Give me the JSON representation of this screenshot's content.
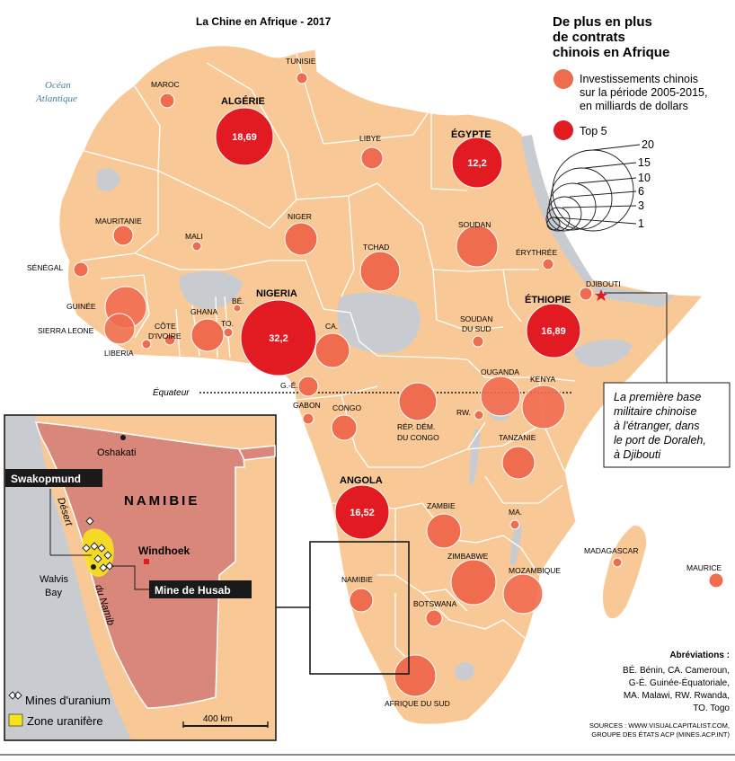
{
  "map": {
    "title": "La Chine en Afrique - 2017",
    "ocean_label": [
      "Océan",
      "Atlantique"
    ],
    "equator_label": "Équateur"
  },
  "colors": {
    "land": "#f8c997",
    "land_border": "#ffffff",
    "water": "#c8ccd0",
    "bubble": "#ef6c4f",
    "bubble_top5": "#e21b23",
    "inset_land": "#d9877a",
    "uranium_zone": "#f6e31b"
  },
  "legend": {
    "heading": [
      "De plus en plus",
      "de contrats",
      "chinois en Afrique"
    ],
    "investments_label": [
      "Investissements chinois",
      "sur la période 2005-2015,",
      "en milliards de dollars"
    ],
    "top5_label": "Top 5",
    "scale_values": [
      "20",
      "15",
      "10",
      "6",
      "3",
      "1"
    ]
  },
  "countries": [
    {
      "name": "TUNISIE"
    },
    {
      "name": "MAROC"
    },
    {
      "name": "ALGÉRIE",
      "value": "18,69"
    },
    {
      "name": "LIBYE"
    },
    {
      "name": "ÉGYPTE",
      "value": "12,2"
    },
    {
      "name": "MAURITANIE"
    },
    {
      "name": "MALI"
    },
    {
      "name": "NIGER"
    },
    {
      "name": "TCHAD"
    },
    {
      "name": "SOUDAN"
    },
    {
      "name": "ÉRYTHRÉE"
    },
    {
      "name": "SÉNÉGAL"
    },
    {
      "name": "GUINÉE"
    },
    {
      "name": "SIERRA LEONE"
    },
    {
      "name": "LIBERIA"
    },
    {
      "name": "CÔTE"
    },
    {
      "name": "D'IVOIRE"
    },
    {
      "name": "GHANA"
    },
    {
      "name": "BÉ."
    },
    {
      "name": "TO."
    },
    {
      "name": "NIGERIA",
      "value": "32,2"
    },
    {
      "name": "CA."
    },
    {
      "name": "SOUDAN"
    },
    {
      "name": "DU SUD"
    },
    {
      "name": "ÉTHIOPIE",
      "value": "16,89"
    },
    {
      "name": "DJIBOUTI"
    },
    {
      "name": "G.-É."
    },
    {
      "name": "GABON"
    },
    {
      "name": "CONGO"
    },
    {
      "name": "RÉP. DÉM."
    },
    {
      "name": "DU CONGO"
    },
    {
      "name": "OUGANDA"
    },
    {
      "name": "KENYA"
    },
    {
      "name": "RW."
    },
    {
      "name": "TANZANIE"
    },
    {
      "name": "ANGOLA",
      "value": "16,52"
    },
    {
      "name": "ZAMBIE"
    },
    {
      "name": "MA."
    },
    {
      "name": "ZIMBABWE"
    },
    {
      "name": "MOZAMBIQUE"
    },
    {
      "name": "MADAGASCAR"
    },
    {
      "name": "MAURICE"
    },
    {
      "name": "NAMIBIE"
    },
    {
      "name": "BOTSWANA"
    },
    {
      "name": "AFRIQUE DU SUD"
    }
  ],
  "annotation": {
    "lines": [
      "La première base",
      "militaire chinoise",
      "à l'étranger, dans",
      "le port de Doraleh,",
      "à Djibouti"
    ]
  },
  "inset": {
    "country": "NAMIBIE",
    "oshakati": "Oshakati",
    "windhoek": "Windhoek",
    "walvis": [
      "Walvis",
      "Bay"
    ],
    "desert": [
      "Désert",
      "du Namib"
    ],
    "swakopmund": "Swakopmund",
    "husab": "Mine de Husab",
    "legend_mines": "Mines d'uranium",
    "legend_zone": "Zone uranifère",
    "scale": "400 km"
  },
  "abbreviations": {
    "title": "Abréviations :",
    "lines": [
      "BÉ. Bénin, CA. Cameroun,",
      "G-É. Guinée-Équatoriale,",
      "MA. Malawi, RW. Rwanda,",
      "TO. Togo"
    ]
  },
  "sources": [
    "SOURCES : WWW.VISUALCAPITALIST.COM,",
    "GROUPE DES ÉTATS ACP (MINES.ACP.INT)"
  ]
}
